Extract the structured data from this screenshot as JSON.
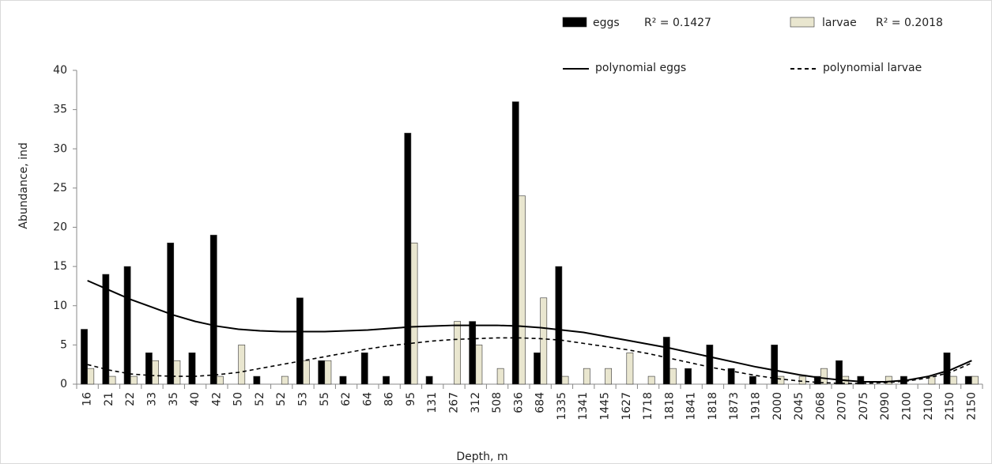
{
  "chart_data": {
    "type": "bar",
    "x_label": "Depth, m",
    "y_label": "Abundance, ind",
    "categories": [
      "16",
      "21",
      "22",
      "33",
      "35",
      "40",
      "42",
      "50",
      "52",
      "52",
      "53",
      "55",
      "62",
      "64",
      "86",
      "95",
      "131",
      "267",
      "312",
      "508",
      "636",
      "684",
      "1335",
      "1341",
      "1445",
      "1627",
      "1718",
      "1818",
      "1841",
      "1818",
      "1873",
      "1918",
      "2000",
      "2045",
      "2068",
      "2070",
      "2075",
      "2090",
      "2100",
      "2100",
      "2150",
      "2150"
    ],
    "series": [
      {
        "name": "eggs",
        "r2": "R² = 0.1427",
        "color": "#000000",
        "values": [
          7,
          14,
          15,
          4,
          18,
          4,
          19,
          0,
          1,
          0,
          11,
          3,
          1,
          4,
          1,
          32,
          1,
          0,
          8,
          0,
          36,
          4,
          15,
          0,
          0,
          0,
          0,
          6,
          2,
          5,
          2,
          1,
          5,
          0,
          1,
          3,
          1,
          0,
          1,
          0,
          4,
          1
        ]
      },
      {
        "name": "larvae",
        "r2": "R² = 0.2018",
        "color": "#e9e6cf",
        "values": [
          2,
          1,
          1,
          3,
          3,
          0,
          1,
          5,
          0,
          1,
          3,
          3,
          0,
          0,
          0,
          18,
          0,
          8,
          5,
          2,
          24,
          11,
          1,
          2,
          2,
          4,
          1,
          2,
          0,
          0,
          0,
          0,
          1,
          1,
          2,
          1,
          0,
          1,
          0,
          1,
          1,
          1
        ]
      }
    ],
    "trendlines": [
      {
        "name": "polynomial eggs",
        "type": "line",
        "color": "#000000",
        "dashed": false,
        "values": [
          13.2,
          12,
          10.8,
          9.8,
          8.8,
          8.0,
          7.4,
          7.0,
          6.8,
          6.7,
          6.7,
          6.7,
          6.8,
          6.9,
          7.1,
          7.3,
          7.4,
          7.5,
          7.5,
          7.5,
          7.4,
          7.2,
          6.9,
          6.6,
          6.1,
          5.6,
          5.1,
          4.6,
          4.0,
          3.4,
          2.8,
          2.2,
          1.7,
          1.2,
          0.8,
          0.5,
          0.3,
          0.3,
          0.5,
          1.0,
          1.8,
          3.0
        ]
      },
      {
        "name": "polynomial larvae",
        "type": "line",
        "color": "#000000",
        "dashed": true,
        "values": [
          2.5,
          1.8,
          1.3,
          1.1,
          1.0,
          1.0,
          1.2,
          1.5,
          2.0,
          2.5,
          3.0,
          3.5,
          4.0,
          4.5,
          4.9,
          5.2,
          5.5,
          5.7,
          5.8,
          5.9,
          5.9,
          5.8,
          5.6,
          5.2,
          4.8,
          4.4,
          3.9,
          3.3,
          2.7,
          2.1,
          1.6,
          1.1,
          0.7,
          0.4,
          0.2,
          0.1,
          0.1,
          0.2,
          0.4,
          0.8,
          1.5,
          2.7
        ]
      }
    ],
    "ylim": [
      0,
      40
    ],
    "yticks": [
      0,
      5,
      10,
      15,
      20,
      25,
      30,
      35,
      40
    ],
    "grid": false
  }
}
